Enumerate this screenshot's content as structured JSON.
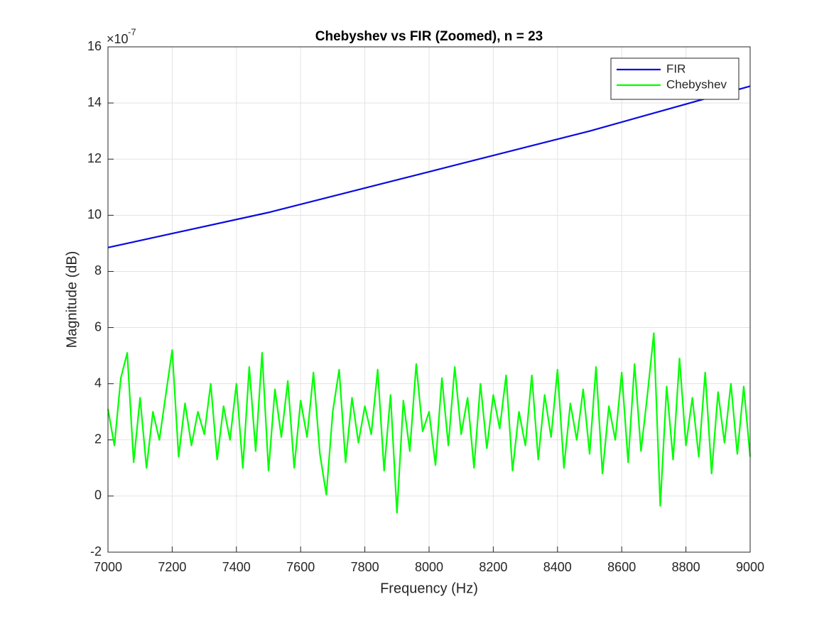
{
  "chart_data": {
    "type": "line",
    "title": "Chebyshev vs FIR (Zoomed), n = 23",
    "x_label": "Frequency (Hz)",
    "y_label": "Magnitude (dB)",
    "y_exponent": {
      "base": "×10",
      "power": "-7"
    },
    "xlim": [
      7000,
      9000
    ],
    "xticks": [
      7000,
      7200,
      7400,
      7600,
      7800,
      8000,
      8200,
      8400,
      8600,
      8800,
      9000
    ],
    "ylim": [
      -2,
      16
    ],
    "yticks": [
      -2,
      0,
      2,
      4,
      6,
      8,
      10,
      12,
      14,
      16
    ],
    "grid": true,
    "legend": "upper right",
    "series": [
      {
        "name": "FIR",
        "color": "#0a0ae0",
        "x": [
          7000,
          7500,
          8000,
          8500,
          9000
        ],
        "values": [
          8.85,
          10.1,
          11.55,
          13.0,
          14.6
        ]
      },
      {
        "name": "Chebyshev",
        "color": "#00ff00",
        "x": [
          7000,
          7020,
          7040,
          7060,
          7080,
          7100,
          7120,
          7140,
          7160,
          7180,
          7200,
          7220,
          7240,
          7260,
          7280,
          7300,
          7320,
          7340,
          7360,
          7380,
          7400,
          7420,
          7440,
          7460,
          7480,
          7500,
          7520,
          7540,
          7560,
          7580,
          7600,
          7620,
          7640,
          7660,
          7680,
          7700,
          7720,
          7740,
          7760,
          7780,
          7800,
          7820,
          7840,
          7860,
          7880,
          7900,
          7920,
          7940,
          7960,
          7980,
          8000,
          8020,
          8040,
          8060,
          8080,
          8100,
          8120,
          8140,
          8160,
          8180,
          8200,
          8220,
          8240,
          8260,
          8280,
          8300,
          8320,
          8340,
          8360,
          8380,
          8400,
          8420,
          8440,
          8460,
          8480,
          8500,
          8520,
          8540,
          8560,
          8580,
          8600,
          8620,
          8640,
          8660,
          8680,
          8700,
          8720,
          8740,
          8760,
          8780,
          8800,
          8820,
          8840,
          8860,
          8880,
          8900,
          8920,
          8940,
          8960,
          8980,
          9000
        ],
        "values": [
          3.1,
          1.8,
          4.2,
          5.1,
          1.2,
          3.5,
          1.0,
          3.0,
          2.0,
          3.6,
          5.2,
          1.4,
          3.3,
          1.8,
          3.0,
          2.2,
          4.0,
          1.3,
          3.2,
          2.0,
          4.0,
          1.0,
          4.6,
          1.6,
          5.1,
          0.9,
          3.8,
          2.1,
          4.1,
          1.0,
          3.4,
          2.1,
          4.4,
          1.5,
          0.05,
          3.0,
          4.5,
          1.2,
          3.5,
          1.9,
          3.2,
          2.2,
          4.5,
          0.9,
          3.6,
          -0.6,
          3.4,
          1.6,
          4.7,
          2.3,
          3.0,
          1.1,
          4.2,
          1.8,
          4.6,
          2.2,
          3.5,
          1.0,
          4.0,
          1.7,
          3.6,
          2.4,
          4.3,
          0.9,
          3.0,
          1.8,
          4.3,
          1.3,
          3.6,
          2.1,
          4.5,
          1.0,
          3.3,
          2.0,
          3.8,
          1.5,
          4.6,
          0.8,
          3.2,
          2.0,
          4.4,
          1.2,
          4.7,
          1.6,
          3.6,
          5.8,
          -0.35,
          3.9,
          1.3,
          4.9,
          1.8,
          3.5,
          1.4,
          4.4,
          0.8,
          3.7,
          1.9,
          4.0,
          1.5,
          3.9,
          1.4
        ]
      }
    ]
  }
}
